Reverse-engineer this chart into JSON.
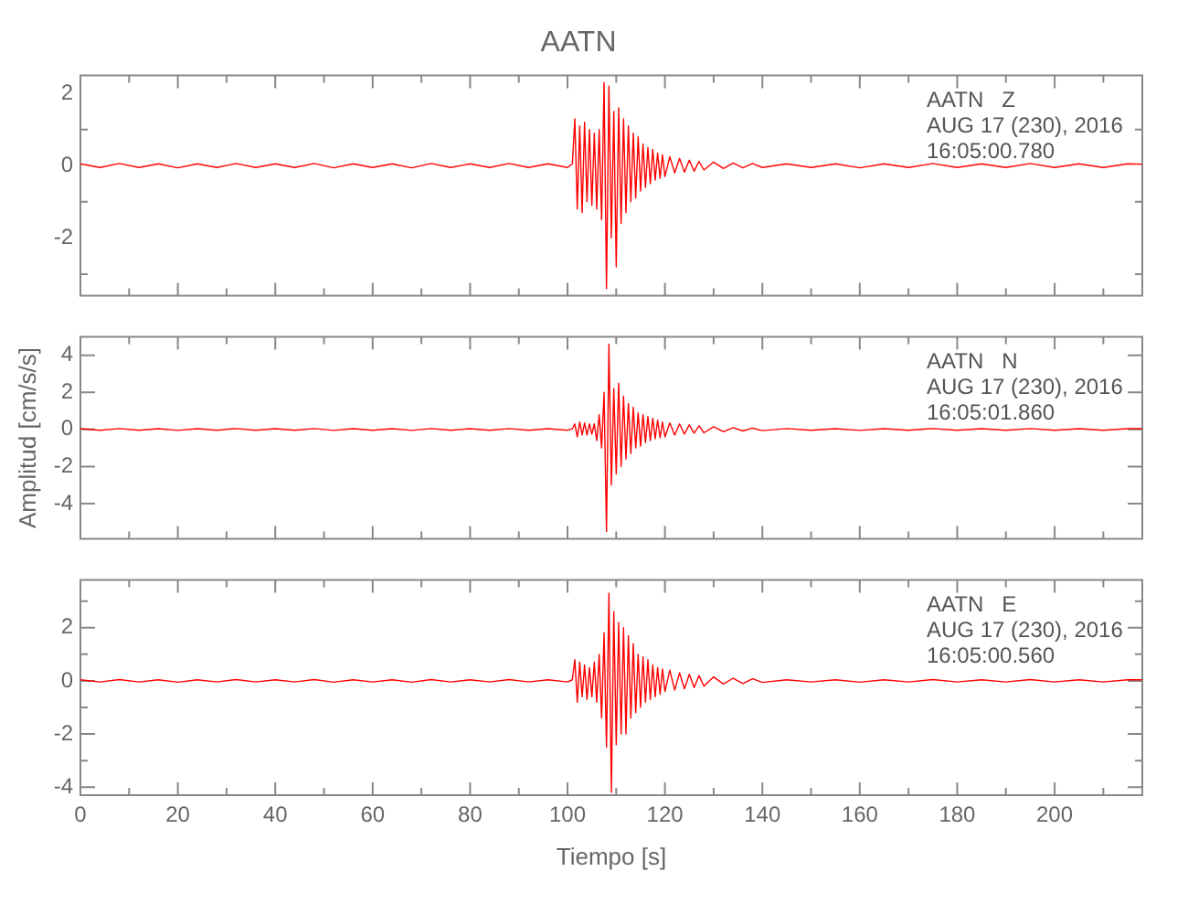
{
  "chart_data": [
    {
      "type": "line",
      "title": "AATN",
      "annotations": [
        "AATN   Z",
        "AUG 17 (230), 2016",
        "16:05:00.780"
      ],
      "color": "#ff0000",
      "marker": "none",
      "tick_labels": "y",
      "xlim": [
        0,
        218
      ],
      "xticks": [
        0,
        {
          "value": 10,
          "label": null
        },
        20,
        {
          "value": 30,
          "label": null
        },
        40,
        {
          "value": 50,
          "label": null
        },
        60,
        {
          "value": 70,
          "label": null
        },
        80,
        {
          "value": 90,
          "label": null
        },
        100,
        {
          "value": 110,
          "label": null
        },
        120,
        {
          "value": 130,
          "label": null
        },
        140,
        {
          "value": 150,
          "label": null
        },
        160,
        {
          "value": 170,
          "label": null
        },
        180,
        {
          "value": 190,
          "label": null
        },
        200,
        {
          "value": 210,
          "label": null
        }
      ],
      "ylim": [
        -3.6,
        2.5
      ],
      "yticks": [
        {
          "value": -3,
          "label": null
        },
        -2,
        {
          "value": -1,
          "label": null
        },
        0,
        {
          "value": 1,
          "label": null
        },
        2
      ],
      "x": [
        0,
        4,
        8,
        12,
        16,
        20,
        24,
        28,
        32,
        36,
        40,
        44,
        48,
        52,
        56,
        60,
        64,
        68,
        72,
        76,
        80,
        84,
        88,
        92,
        96,
        100,
        101,
        101.5,
        102,
        102.5,
        103,
        103.5,
        104,
        104.5,
        105,
        105.5,
        106,
        106.5,
        107,
        107.5,
        108,
        108.5,
        109,
        109.5,
        110,
        110.5,
        111,
        111.5,
        112,
        112.5,
        113,
        113.5,
        114,
        114.5,
        115,
        115.5,
        116,
        116.5,
        117,
        117.5,
        118,
        118.5,
        119,
        119.5,
        120,
        121,
        122,
        123,
        124,
        125,
        126,
        127,
        128,
        130,
        132,
        134,
        136,
        138,
        140,
        145,
        150,
        155,
        160,
        165,
        170,
        175,
        180,
        185,
        190,
        195,
        200,
        205,
        210,
        215,
        218
      ],
      "values": [
        0.05,
        -0.05,
        0.06,
        -0.05,
        0.05,
        -0.06,
        0.05,
        -0.05,
        0.06,
        -0.05,
        0.05,
        -0.05,
        0.06,
        -0.06,
        0.05,
        -0.05,
        0.05,
        -0.06,
        0.06,
        -0.05,
        0.05,
        -0.05,
        0.06,
        -0.05,
        0.05,
        -0.05,
        0.05,
        1.3,
        -1.2,
        1.1,
        -1.3,
        1.2,
        -1.0,
        1.0,
        -1.1,
        0.9,
        -1.2,
        1.0,
        -1.5,
        2.3,
        -3.4,
        2.2,
        -2.0,
        1.5,
        -2.8,
        1.6,
        -1.6,
        1.3,
        -1.3,
        1.1,
        -1.0,
        0.9,
        -0.9,
        0.8,
        -0.7,
        0.6,
        -0.6,
        0.5,
        -0.5,
        0.45,
        -0.4,
        0.35,
        -0.35,
        0.3,
        -0.3,
        0.25,
        -0.2,
        0.2,
        -0.18,
        0.15,
        -0.15,
        0.12,
        -0.12,
        0.1,
        -0.08,
        0.07,
        -0.06,
        0.06,
        -0.05,
        0.05,
        -0.05,
        0.05,
        -0.06,
        0.05,
        -0.05,
        0.06,
        -0.05,
        0.05,
        -0.05,
        0.06,
        -0.05,
        0.05,
        -0.05,
        0.05,
        0.04
      ]
    },
    {
      "type": "line",
      "ylabel": "Amplitud [cm/s/s]",
      "annotations": [
        "AATN   N",
        "AUG 17 (230), 2016",
        "16:05:01.860"
      ],
      "color": "#ff0000",
      "marker": "none",
      "tick_labels": "y",
      "xlim": [
        0,
        218
      ],
      "xticks": [
        0,
        {
          "value": 10,
          "label": null
        },
        20,
        {
          "value": 30,
          "label": null
        },
        40,
        {
          "value": 50,
          "label": null
        },
        60,
        {
          "value": 70,
          "label": null
        },
        80,
        {
          "value": 90,
          "label": null
        },
        100,
        {
          "value": 110,
          "label": null
        },
        120,
        {
          "value": 130,
          "label": null
        },
        140,
        {
          "value": 150,
          "label": null
        },
        160,
        {
          "value": 170,
          "label": null
        },
        180,
        {
          "value": 190,
          "label": null
        },
        200,
        {
          "value": 210,
          "label": null
        }
      ],
      "ylim": [
        -5.9,
        5
      ],
      "yticks": [
        -4,
        -2,
        0,
        2,
        4
      ],
      "x": [
        0,
        4,
        8,
        12,
        16,
        20,
        24,
        28,
        32,
        36,
        40,
        44,
        48,
        52,
        56,
        60,
        64,
        68,
        72,
        76,
        80,
        84,
        88,
        92,
        96,
        100,
        101,
        101.5,
        102,
        102.5,
        103,
        103.5,
        104,
        104.5,
        105,
        105.5,
        106,
        106.5,
        107,
        107.5,
        108,
        108.5,
        109,
        109.5,
        110,
        110.5,
        111,
        111.5,
        112,
        112.5,
        113,
        113.5,
        114,
        114.5,
        115,
        115.5,
        116,
        116.5,
        117,
        117.5,
        118,
        118.5,
        119,
        119.5,
        120,
        121,
        122,
        123,
        124,
        125,
        126,
        127,
        128,
        130,
        132,
        134,
        136,
        138,
        140,
        145,
        150,
        155,
        160,
        165,
        170,
        175,
        180,
        185,
        190,
        195,
        200,
        205,
        210,
        215,
        218
      ],
      "values": [
        0.04,
        -0.04,
        0.05,
        -0.04,
        0.04,
        -0.05,
        0.04,
        -0.04,
        0.05,
        -0.04,
        0.04,
        -0.04,
        0.05,
        -0.05,
        0.04,
        -0.04,
        0.04,
        -0.05,
        0.05,
        -0.04,
        0.04,
        -0.04,
        0.05,
        -0.04,
        0.04,
        -0.04,
        0.04,
        0.3,
        -0.4,
        0.4,
        -0.3,
        0.35,
        -0.3,
        0.3,
        -0.25,
        0.3,
        -0.6,
        0.8,
        -1.0,
        2.0,
        -5.5,
        4.6,
        -3.0,
        2.2,
        -2.4,
        2.5,
        -2.0,
        1.8,
        -1.6,
        1.4,
        -1.3,
        1.2,
        -1.0,
        0.9,
        -0.9,
        0.8,
        -0.7,
        0.7,
        -0.6,
        0.6,
        -0.5,
        0.5,
        -0.45,
        0.4,
        -0.4,
        0.35,
        -0.3,
        0.3,
        -0.25,
        0.25,
        -0.2,
        0.2,
        -0.18,
        0.15,
        -0.12,
        0.1,
        -0.08,
        0.07,
        -0.06,
        0.05,
        -0.04,
        0.04,
        -0.05,
        0.04,
        -0.04,
        0.05,
        -0.04,
        0.04,
        -0.04,
        0.05,
        -0.04,
        0.04,
        -0.04,
        0.04,
        0.04
      ]
    },
    {
      "type": "line",
      "xlabel": "Tiempo [s]",
      "annotations": [
        "AATN   E",
        "AUG 17 (230), 2016",
        "16:05:00.560"
      ],
      "color": "#ff0000",
      "marker": "none",
      "xlim": [
        0,
        218
      ],
      "xticks": [
        0,
        {
          "value": 10,
          "label": null
        },
        20,
        {
          "value": 30,
          "label": null
        },
        40,
        {
          "value": 50,
          "label": null
        },
        60,
        {
          "value": 70,
          "label": null
        },
        80,
        {
          "value": 90,
          "label": null
        },
        100,
        {
          "value": 110,
          "label": null
        },
        120,
        {
          "value": 130,
          "label": null
        },
        140,
        {
          "value": 150,
          "label": null
        },
        160,
        {
          "value": 170,
          "label": null
        },
        180,
        {
          "value": 190,
          "label": null
        },
        200,
        {
          "value": 210,
          "label": null
        }
      ],
      "ylim": [
        -4.3,
        3.8
      ],
      "yticks": [
        -4,
        {
          "value": -3,
          "label": null
        },
        -2,
        {
          "value": -1,
          "label": null
        },
        0,
        {
          "value": 1,
          "label": null
        },
        2,
        {
          "value": 3,
          "label": null
        }
      ],
      "x": [
        0,
        4,
        8,
        12,
        16,
        20,
        24,
        28,
        32,
        36,
        40,
        44,
        48,
        52,
        56,
        60,
        64,
        68,
        72,
        76,
        80,
        84,
        88,
        92,
        96,
        100,
        101,
        101.5,
        102,
        102.5,
        103,
        103.5,
        104,
        104.5,
        105,
        105.5,
        106,
        106.5,
        107,
        107.5,
        108,
        108.5,
        109,
        109.5,
        110,
        110.5,
        111,
        111.5,
        112,
        112.5,
        113,
        113.5,
        114,
        114.5,
        115,
        115.5,
        116,
        116.5,
        117,
        117.5,
        118,
        118.5,
        119,
        119.5,
        120,
        121,
        122,
        123,
        124,
        125,
        126,
        127,
        128,
        130,
        132,
        134,
        136,
        138,
        140,
        145,
        150,
        155,
        160,
        165,
        170,
        175,
        180,
        185,
        190,
        195,
        200,
        205,
        210,
        215,
        218
      ],
      "values": [
        0.04,
        -0.04,
        0.05,
        -0.04,
        0.04,
        -0.05,
        0.04,
        -0.04,
        0.05,
        -0.04,
        0.04,
        -0.04,
        0.05,
        -0.05,
        0.04,
        -0.04,
        0.04,
        -0.05,
        0.05,
        -0.04,
        0.04,
        -0.04,
        0.05,
        -0.04,
        0.04,
        -0.04,
        0.04,
        0.8,
        -0.8,
        0.7,
        -0.6,
        0.6,
        -0.7,
        0.5,
        -0.6,
        0.7,
        -0.8,
        1.0,
        -1.4,
        1.8,
        -2.5,
        3.3,
        -4.2,
        2.6,
        -2.4,
        2.2,
        -2.0,
        2.0,
        -2.0,
        1.7,
        -1.4,
        1.4,
        -1.2,
        1.0,
        -1.0,
        0.9,
        -0.8,
        0.8,
        -0.7,
        0.6,
        -0.6,
        0.5,
        -0.5,
        0.45,
        -0.4,
        0.4,
        -0.35,
        0.3,
        -0.3,
        0.25,
        -0.25,
        0.2,
        -0.2,
        0.15,
        -0.12,
        0.1,
        -0.1,
        0.08,
        -0.06,
        0.04,
        -0.04,
        0.04,
        -0.05,
        0.04,
        -0.04,
        0.05,
        -0.04,
        0.04,
        -0.04,
        0.05,
        -0.04,
        0.04,
        -0.04,
        0.04,
        0.04
      ]
    }
  ]
}
